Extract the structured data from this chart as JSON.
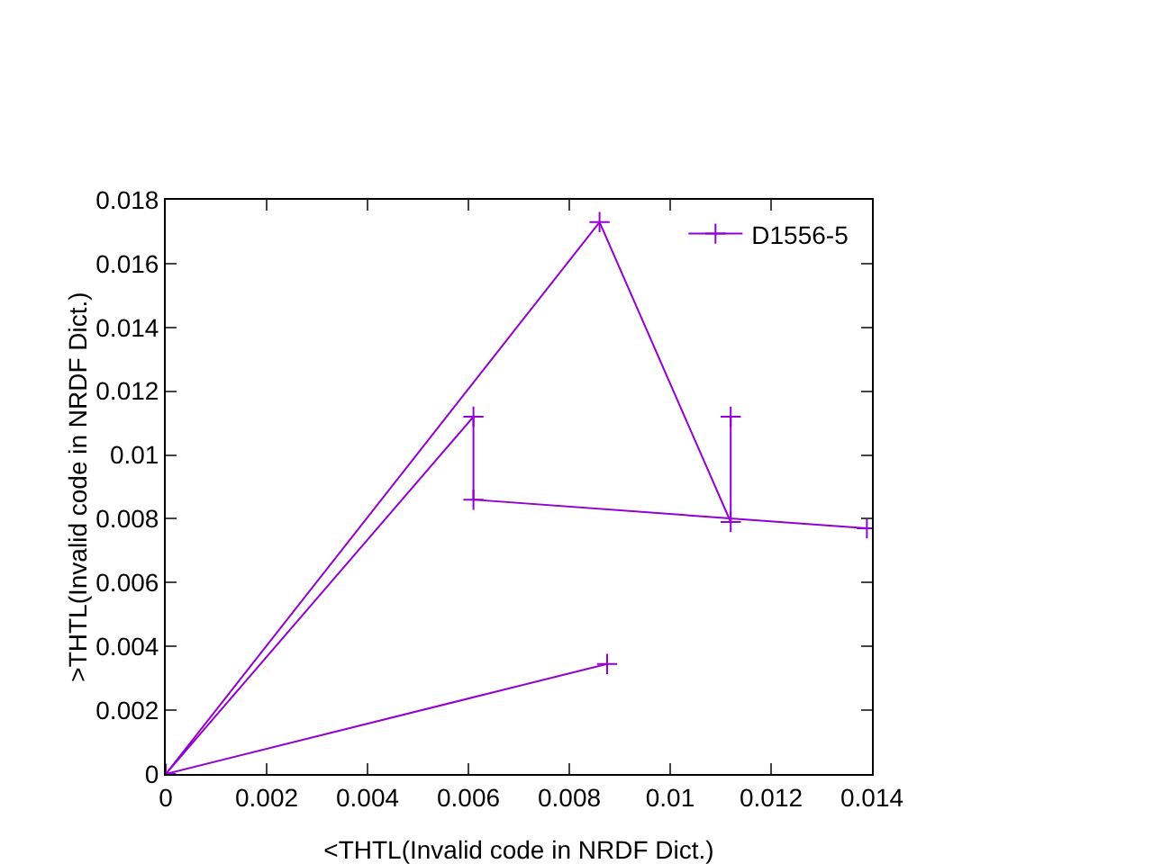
{
  "chart_data": {
    "type": "line",
    "xlabel": "<THTL(Invalid code in NRDF Dict.)",
    "ylabel": ">THTL(Invalid code in NRDF Dict.)",
    "x": [
      0.0112,
      0.0112,
      0.0086,
      0,
      0.00875,
      0,
      0.0061,
      0.0061,
      0.0139
    ],
    "series": [
      {
        "name": "D1556-5",
        "color": "#9400d3",
        "values": [
          0.0112,
          0.0079,
          0.0173,
          0,
          0.00345,
          0,
          0.0112,
          0.0086,
          0.0077
        ]
      }
    ],
    "xlim": [
      0,
      0.014
    ],
    "xticks": [
      0,
      0.002,
      0.004,
      0.006,
      0.008,
      0.01,
      0.012,
      0.014
    ],
    "ylim": [
      0,
      0.018
    ],
    "yticks": [
      0,
      0.002,
      0.004,
      0.006,
      0.008,
      0.01,
      0.012,
      0.014,
      0.016,
      0.018
    ],
    "legend": "top right",
    "marker": "cross",
    "line_style": "solid",
    "grid": false
  }
}
